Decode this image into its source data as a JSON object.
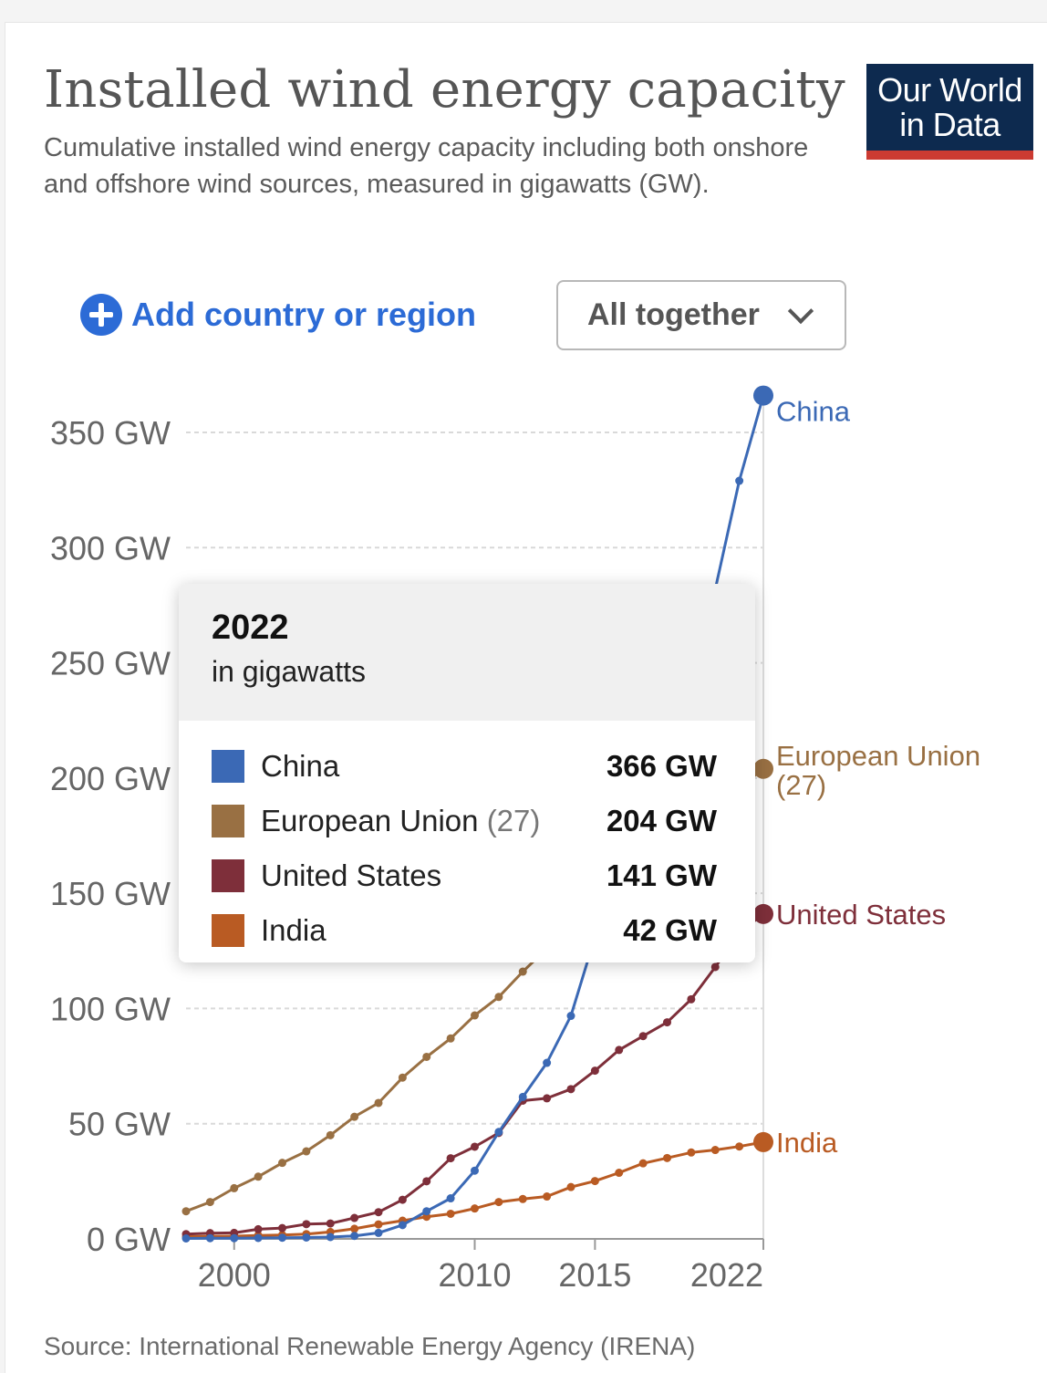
{
  "header": {
    "title": "Installed wind energy capacity",
    "subtitle": "Cumulative installed wind energy capacity including both onshore and offshore wind sources, measured in gigawatts (GW).",
    "logo_line1": "Our World",
    "logo_line2": "in Data"
  },
  "controls": {
    "add_label": "Add country or region",
    "dropdown_value": "All together"
  },
  "tooltip": {
    "year": "2022",
    "unit": "in gigawatts",
    "rows": [
      {
        "name": "China",
        "suffix": "",
        "value": "366 GW",
        "color": "#3b69b5"
      },
      {
        "name": "European Union",
        "suffix": "(27)",
        "value": "204 GW",
        "color": "#997043"
      },
      {
        "name": "United States",
        "suffix": "",
        "value": "141 GW",
        "color": "#7e2f3a"
      },
      {
        "name": "India",
        "suffix": "",
        "value": "42 GW",
        "color": "#b95b23"
      }
    ]
  },
  "source": "Source: International Renewable Energy Agency (IRENA)",
  "chart_data": {
    "type": "line",
    "xlim": [
      1998,
      2022
    ],
    "ylim": [
      0,
      366
    ],
    "y_ticks": [
      0,
      50,
      100,
      150,
      200,
      250,
      300,
      350
    ],
    "y_tick_labels": [
      "0 GW",
      "50 GW",
      "100 GW",
      "150 GW",
      "200 GW",
      "250 GW",
      "300 GW",
      "350 GW"
    ],
    "x_ticks": [
      2000,
      2010,
      2015,
      2022
    ],
    "x_tick_labels": [
      "2000",
      "2010",
      "2015",
      "2022"
    ],
    "grid": "horizontal dashed",
    "legend": "line-end labels",
    "x": [
      1998,
      1999,
      2000,
      2001,
      2002,
      2003,
      2004,
      2005,
      2006,
      2007,
      2008,
      2009,
      2010,
      2011,
      2012,
      2013,
      2014,
      2015,
      2016,
      2017,
      2018,
      2019,
      2020,
      2021,
      2022
    ],
    "series": [
      {
        "name": "China",
        "label": "China",
        "color": "#3b69b5",
        "values": [
          0.2,
          0.3,
          0.3,
          0.4,
          0.5,
          0.6,
          0.8,
          1.3,
          2.6,
          6,
          12,
          17.6,
          29.6,
          46.4,
          61.6,
          76.4,
          96.8,
          131,
          148,
          164,
          184,
          210,
          282,
          329,
          366
        ]
      },
      {
        "name": "European Union",
        "suffix": "(27)",
        "label": "European Union (27)",
        "color": "#997043",
        "values": [
          12,
          16,
          22,
          27,
          33,
          38,
          45,
          53,
          59,
          70,
          79,
          87,
          97,
          105,
          116,
          126,
          134,
          143,
          153,
          163,
          171,
          180,
          188,
          196,
          204
        ]
      },
      {
        "name": "United States",
        "label": "United States",
        "color": "#7e2f3a",
        "values": [
          2.1,
          2.5,
          2.6,
          4.2,
          4.7,
          6.4,
          6.7,
          9.1,
          11.6,
          17,
          25,
          35,
          40,
          46,
          60,
          61,
          65,
          73,
          82,
          88,
          94,
          104,
          118,
          133,
          141
        ]
      },
      {
        "name": "India",
        "label": "India",
        "color": "#b95b23",
        "values": [
          1,
          1.1,
          1.2,
          1.5,
          1.7,
          2.1,
          3,
          4.4,
          6.3,
          7.9,
          9.6,
          10.9,
          13.2,
          16,
          17.3,
          18.4,
          22.5,
          25.1,
          28.7,
          32.8,
          35.1,
          37.5,
          38.6,
          40.1,
          42
        ]
      }
    ]
  }
}
